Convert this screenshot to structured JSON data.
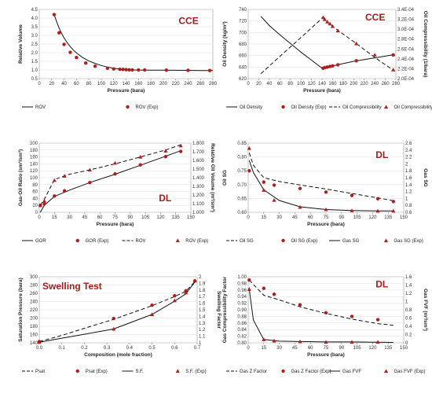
{
  "chart_data": [
    {
      "id": "p1",
      "type": "line",
      "tag": "CCE",
      "title": "",
      "xlabel": "Pressure (bara)",
      "ylabel": "Relative Volume",
      "xlim": [
        0,
        280
      ],
      "xticks": [
        0,
        20,
        40,
        60,
        80,
        100,
        120,
        140,
        160,
        180,
        200,
        220,
        240,
        260,
        280
      ],
      "ylim": [
        0.5,
        4.5
      ],
      "yticks": [
        0.5,
        1.0,
        1.5,
        2.0,
        2.5,
        3.0,
        3.5,
        4.0,
        4.5
      ],
      "ydec": 1,
      "legend": "bottom",
      "series": [
        {
          "name": "ROV",
          "style": "solid",
          "marker": "none",
          "axis": "left",
          "x": [
            24,
            30,
            35,
            40,
            45,
            50,
            55,
            60,
            70,
            80,
            90,
            100,
            110,
            120,
            130,
            140,
            150,
            160,
            180,
            200,
            220,
            240,
            260,
            280
          ],
          "y": [
            4.2,
            3.6,
            3.18,
            2.85,
            2.58,
            2.35,
            2.15,
            1.98,
            1.72,
            1.52,
            1.38,
            1.26,
            1.17,
            1.1,
            1.05,
            1.01,
            1.0,
            0.995,
            0.99,
            0.985,
            0.98,
            0.975,
            0.97,
            0.965
          ]
        },
        {
          "name": "ROV (Exp)",
          "style": "none",
          "marker": "circle",
          "axis": "left",
          "x": [
            24,
            32,
            40,
            50,
            60,
            75,
            90,
            110,
            120,
            130,
            135,
            140,
            145,
            150,
            160,
            170,
            205,
            240,
            275
          ],
          "y": [
            4.2,
            3.15,
            2.48,
            2.02,
            1.72,
            1.4,
            1.22,
            1.1,
            1.06,
            1.04,
            1.03,
            1.02,
            1.01,
            1.005,
            1.0,
            1.0,
            0.99,
            0.98,
            0.97
          ]
        }
      ]
    },
    {
      "id": "p2",
      "type": "line",
      "tag": "CCE",
      "title": "",
      "xlabel": "Pressure (bara)",
      "ylabel": "Oil Density (kg/m³)",
      "ylabel2": "Oil Compressibility (1/bara)",
      "xlim": [
        0,
        280
      ],
      "xticks": [
        0,
        20,
        40,
        60,
        80,
        100,
        120,
        140,
        160,
        180,
        200,
        220,
        240,
        260,
        280
      ],
      "ylim": [
        620,
        740
      ],
      "yticks": [
        620,
        640,
        660,
        680,
        700,
        720,
        740
      ],
      "ydec": 0,
      "ylim2": [
        0.0002,
        0.00034
      ],
      "y2ticks": [
        "2.0E-04",
        "2.2E-04",
        "2.4E-04",
        "2.6E-04",
        "2.8E-04",
        "3.0E-04",
        "3.2E-04",
        "3.4E-04"
      ],
      "legend": "bottom",
      "series": [
        {
          "name": "Oil Density",
          "style": "solid",
          "marker": "none",
          "axis": "left",
          "x": [
            24,
            40,
            60,
            80,
            100,
            120,
            140,
            142,
            160,
            180,
            200,
            220,
            240,
            260,
            278
          ],
          "y": [
            728,
            712,
            696,
            681,
            666,
            652,
            638,
            638,
            642,
            646,
            650,
            653,
            656,
            659,
            662
          ]
        },
        {
          "name": "Oil Density (Exp)",
          "style": "none",
          "marker": "circle",
          "axis": "left",
          "x": [
            142,
            145,
            150,
            155,
            160,
            170,
            205,
            275
          ],
          "y": [
            638,
            639,
            640,
            641,
            642,
            644,
            651,
            661
          ]
        },
        {
          "name": "Oil Compressibility",
          "style": "dash",
          "marker": "none",
          "axis": "right",
          "x": [
            24,
            60,
            100,
            140,
            142,
            160,
            180,
            200,
            220,
            240,
            260,
            278
          ],
          "y": [
            0.00021,
            0.000245,
            0.000283,
            0.000322,
            0.000322,
            0.000306,
            0.00029,
            0.000275,
            0.000259,
            0.000243,
            0.000228,
            0.000215
          ]
        },
        {
          "name": "Oil Compressibility (Exp)",
          "style": "none",
          "marker": "triangle",
          "axis": "right",
          "x": [
            142,
            145,
            150,
            155,
            160,
            170,
            205,
            240,
            275
          ],
          "y": [
            0.000324,
            0.00032,
            0.000315,
            0.000311,
            0.000306,
            0.000297,
            0.000271,
            0.000248,
            0.000218
          ]
        }
      ]
    },
    {
      "id": "p3",
      "type": "line",
      "tag": "DL",
      "title": "",
      "xlabel": "Pressure (bara)",
      "ylabel": "Gas-Oil Ratio (sm³/sm³)",
      "ylabel2": "Relative Oil Volume (m³/sm³)",
      "xlim": [
        0,
        150
      ],
      "xticks": [
        0,
        15,
        30,
        45,
        60,
        75,
        90,
        105,
        120,
        135,
        150
      ],
      "ylim": [
        0,
        200
      ],
      "yticks": [
        0,
        20,
        40,
        60,
        80,
        100,
        120,
        140,
        160,
        180,
        200
      ],
      "ydec": 0,
      "ylim2": [
        1.0,
        1.8
      ],
      "y2ticks": [
        "1.000",
        "1.100",
        "1.200",
        "1.300",
        "1.400",
        "1.500",
        "1.600",
        "1.700",
        "1.800"
      ],
      "legend": "bottom",
      "series": [
        {
          "name": "GOR",
          "style": "solid",
          "marker": "none",
          "axis": "left",
          "x": [
            1,
            5,
            15,
            30,
            50,
            75,
            100,
            125,
            140
          ],
          "y": [
            0,
            20,
            46,
            64,
            86,
            110,
            136,
            162,
            178
          ]
        },
        {
          "name": "GOR (Exp)",
          "style": "none",
          "marker": "circle",
          "axis": "left",
          "x": [
            1,
            5,
            15,
            25,
            50,
            75,
            100,
            125,
            140
          ],
          "y": [
            20,
            24,
            47,
            62,
            86,
            111,
            137,
            161,
            176
          ]
        },
        {
          "name": "ROV",
          "style": "dash",
          "marker": "none",
          "axis": "right",
          "x": [
            1,
            5,
            15,
            30,
            50,
            75,
            100,
            125,
            140
          ],
          "y": [
            1.08,
            1.15,
            1.38,
            1.44,
            1.49,
            1.56,
            1.64,
            1.72,
            1.78
          ]
        },
        {
          "name": "ROV (Exp)",
          "style": "none",
          "marker": "triangle",
          "axis": "right",
          "x": [
            1,
            5,
            15,
            25,
            50,
            75,
            100,
            125,
            140
          ],
          "y": [
            1.08,
            1.13,
            1.37,
            1.42,
            1.49,
            1.57,
            1.64,
            1.71,
            1.77
          ]
        }
      ]
    },
    {
      "id": "p4",
      "type": "line",
      "tag": "DL",
      "title": "",
      "xlabel": "Pressure (bara)",
      "ylabel": "Oil SG",
      "ylabel2": "Gas SG",
      "xlim": [
        0,
        150
      ],
      "xticks": [
        0,
        15,
        30,
        45,
        60,
        75,
        90,
        105,
        120,
        135,
        150
      ],
      "ylim": [
        0.6,
        0.85
      ],
      "yticks": [
        0.6,
        0.65,
        0.7,
        0.75,
        0.8,
        0.85
      ],
      "ydec": 2,
      "ylim2": [
        0.6,
        2.6
      ],
      "y2ticks": [
        "0.6",
        "0.8",
        "1",
        "1.2",
        "1.4",
        "1.6",
        "1.8",
        "2",
        "2.2",
        "2.4",
        "2.6"
      ],
      "legend": "bottom",
      "series": [
        {
          "name": "Oil SG",
          "style": "dash",
          "marker": "none",
          "axis": "left",
          "x": [
            1,
            5,
            15,
            30,
            50,
            75,
            100,
            125,
            140
          ],
          "y": [
            0.815,
            0.77,
            0.725,
            0.711,
            0.699,
            0.684,
            0.668,
            0.652,
            0.642
          ]
        },
        {
          "name": "Oil SG (Exp)",
          "style": "none",
          "marker": "circle",
          "axis": "left",
          "x": [
            1,
            15,
            25,
            50,
            75,
            100,
            125,
            140
          ],
          "y": [
            0.75,
            0.709,
            0.698,
            0.686,
            0.673,
            0.661,
            0.649,
            0.639
          ]
        },
        {
          "name": "Gas SG",
          "style": "solid",
          "marker": "none",
          "axis": "right",
          "x": [
            1,
            5,
            15,
            30,
            50,
            75,
            100,
            125,
            140
          ],
          "y": [
            2.1,
            1.75,
            1.25,
            0.94,
            0.76,
            0.68,
            0.65,
            0.64,
            0.64
          ]
        },
        {
          "name": "Gas SG (Exp)",
          "style": "none",
          "marker": "triangle",
          "axis": "right",
          "x": [
            1,
            15,
            25,
            50,
            75,
            100,
            125,
            140
          ],
          "y": [
            2.45,
            1.24,
            0.95,
            0.75,
            0.68,
            0.65,
            0.64,
            0.64
          ]
        }
      ]
    },
    {
      "id": "p5",
      "type": "line",
      "tag": "Swelling Test",
      "title": "",
      "xlabel": "Composition (mole fraction)",
      "ylabel": "Saturation Pressure (bara)",
      "ylabel2": "Swelling Factor",
      "xlim": [
        0,
        0.7
      ],
      "xticks": [
        0,
        0.1,
        0.2,
        0.3,
        0.4,
        0.5,
        0.6,
        0.7
      ],
      "xdec": 1,
      "ylim": [
        140,
        300
      ],
      "yticks": [
        140,
        160,
        180,
        200,
        220,
        240,
        260,
        280,
        300
      ],
      "ydec": 0,
      "ylim2": [
        1.0,
        2.0
      ],
      "y2ticks": [
        "1",
        "1.1",
        "1.2",
        "1.3",
        "1.4",
        "1.5",
        "1.6",
        "1.7",
        "1.8",
        "1.9",
        "2"
      ],
      "legend": "bottom",
      "series": [
        {
          "name": "Psat",
          "style": "dash",
          "marker": "none",
          "axis": "left",
          "x": [
            0,
            0.1,
            0.2,
            0.33,
            0.5,
            0.6,
            0.65,
            0.69
          ],
          "y": [
            143,
            158,
            175,
            197,
            230,
            252,
            265,
            288
          ]
        },
        {
          "name": "Psat (Exp)",
          "style": "none",
          "marker": "circle",
          "axis": "left",
          "x": [
            0,
            0.33,
            0.5,
            0.6,
            0.65,
            0.69
          ],
          "y": [
            143,
            199,
            231,
            254,
            266,
            290
          ]
        },
        {
          "name": "S.F.",
          "style": "solid",
          "marker": "none",
          "axis": "right",
          "x": [
            0,
            0.1,
            0.2,
            0.33,
            0.5,
            0.6,
            0.65,
            0.69
          ],
          "y": [
            1.01,
            1.07,
            1.13,
            1.21,
            1.43,
            1.63,
            1.74,
            1.92
          ]
        },
        {
          "name": "S.F. (Exp)",
          "style": "none",
          "marker": "triangle",
          "axis": "right",
          "x": [
            0,
            0.33,
            0.5,
            0.6,
            0.65,
            0.69
          ],
          "y": [
            1.01,
            1.21,
            1.43,
            1.64,
            1.76,
            1.94
          ]
        }
      ]
    },
    {
      "id": "p6",
      "type": "line",
      "tag": "DL",
      "title": "",
      "xlabel": "Pressure (bara)",
      "ylabel": "Gas Compressibility Factor",
      "ylabel2": "Gas FVF (m³/sm³)",
      "xlim": [
        0,
        150
      ],
      "xticks": [
        0,
        15,
        30,
        45,
        60,
        75,
        90,
        105,
        120,
        135,
        150
      ],
      "ylim": [
        0.8,
        1.0
      ],
      "yticks": [
        0.8,
        0.82,
        0.84,
        0.86,
        0.88,
        0.9,
        0.92,
        0.94,
        0.96,
        0.98,
        1.0
      ],
      "ydec": 2,
      "ylim2": [
        0,
        1.6
      ],
      "y2ticks": [
        "0",
        "0.2",
        "0.4",
        "0.6",
        "0.8",
        "1",
        "1.2",
        "1.4",
        "1.6"
      ],
      "legend": "bottom",
      "series": [
        {
          "name": "Gas Z Factor",
          "style": "dash",
          "marker": "none",
          "axis": "left",
          "x": [
            1,
            15,
            30,
            50,
            75,
            100,
            125,
            140
          ],
          "y": [
            0.99,
            0.944,
            0.93,
            0.909,
            0.889,
            0.872,
            0.858,
            0.853
          ]
        },
        {
          "name": "Gas Z Factor (Exp)",
          "style": "none",
          "marker": "circle",
          "axis": "left",
          "x": [
            1,
            15,
            25,
            50,
            75,
            100,
            125
          ],
          "y": [
            0.99,
            0.965,
            0.947,
            0.915,
            0.891,
            0.88,
            0.87
          ]
        },
        {
          "name": "Gas FVF",
          "style": "solid",
          "marker": "none",
          "axis": "right",
          "x": [
            1,
            5,
            15,
            30,
            50,
            75,
            100,
            125,
            140
          ],
          "y": [
            1.3,
            0.55,
            0.08,
            0.04,
            0.03,
            0.02,
            0.02,
            0.015,
            0.01
          ]
        },
        {
          "name": "Gas FVF (Exp)",
          "style": "none",
          "marker": "triangle",
          "axis": "right",
          "x": [
            1,
            15,
            25,
            50,
            75,
            100,
            125
          ],
          "y": [
            1.3,
            0.08,
            0.05,
            0.03,
            0.02,
            0.02,
            0.02
          ]
        }
      ]
    }
  ]
}
